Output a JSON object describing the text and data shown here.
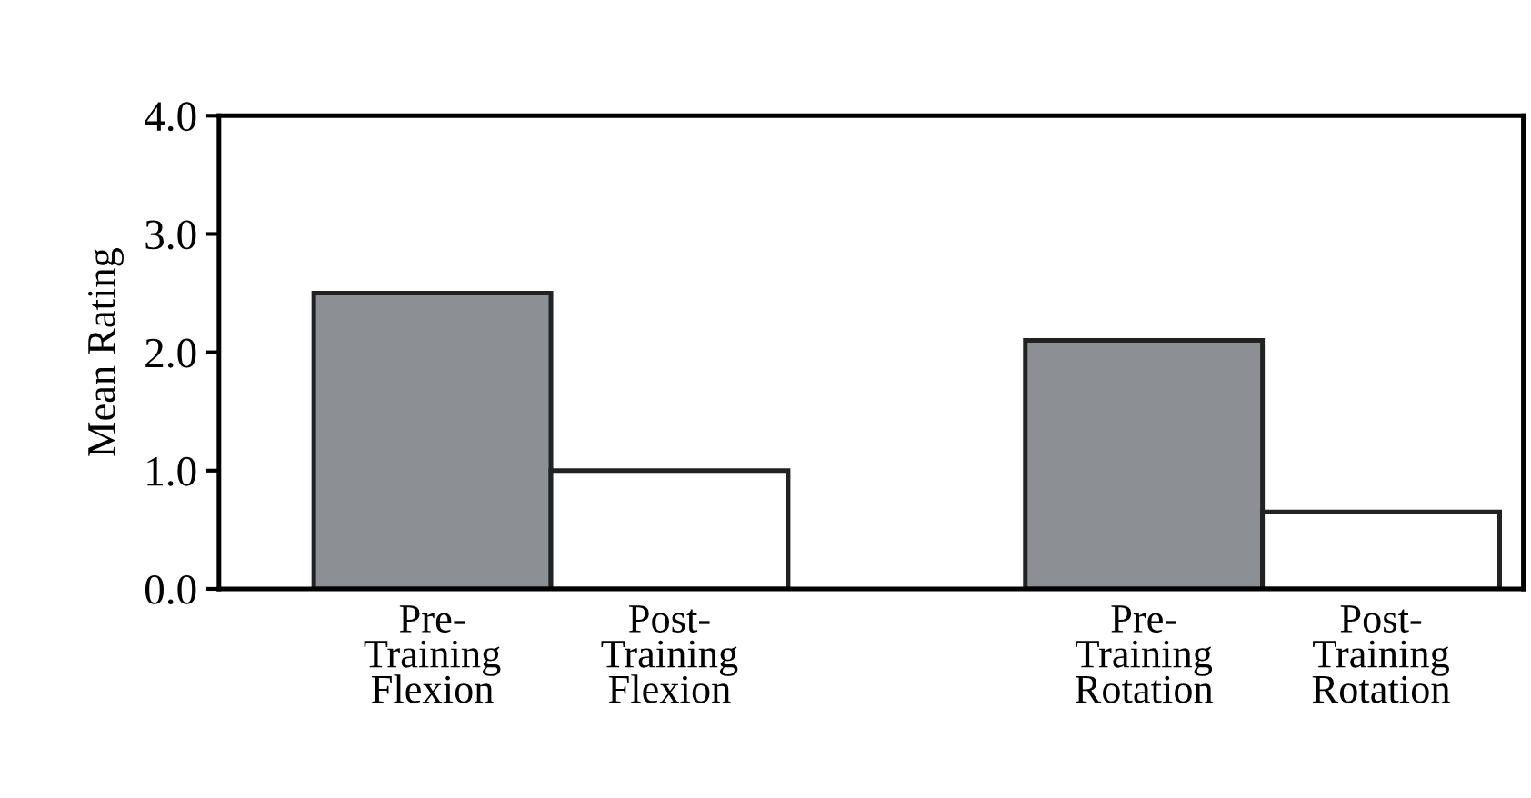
{
  "chart_data": {
    "type": "bar",
    "ylabel": "Mean Rating",
    "categories": [
      "Pre-\nTraining\nFlexion",
      "Post-\nTraining\nFlexion",
      null,
      "Pre-\nTraining\nRotation",
      "Post-\nTraining\nRotation"
    ],
    "values": [
      2.5,
      1.0,
      null,
      2.1,
      0.65
    ],
    "colors": [
      "#8c9094",
      "#ffffff",
      null,
      "#8c9094",
      "#ffffff"
    ],
    "ylim": [
      0,
      4.0
    ],
    "yticks": [
      {
        "value": 0,
        "label": "0.0"
      },
      {
        "value": 1,
        "label": "1.0"
      },
      {
        "value": 2,
        "label": "2.0"
      },
      {
        "value": 3,
        "label": "3.0"
      },
      {
        "value": 4,
        "label": "4.0"
      }
    ],
    "grid": false
  }
}
